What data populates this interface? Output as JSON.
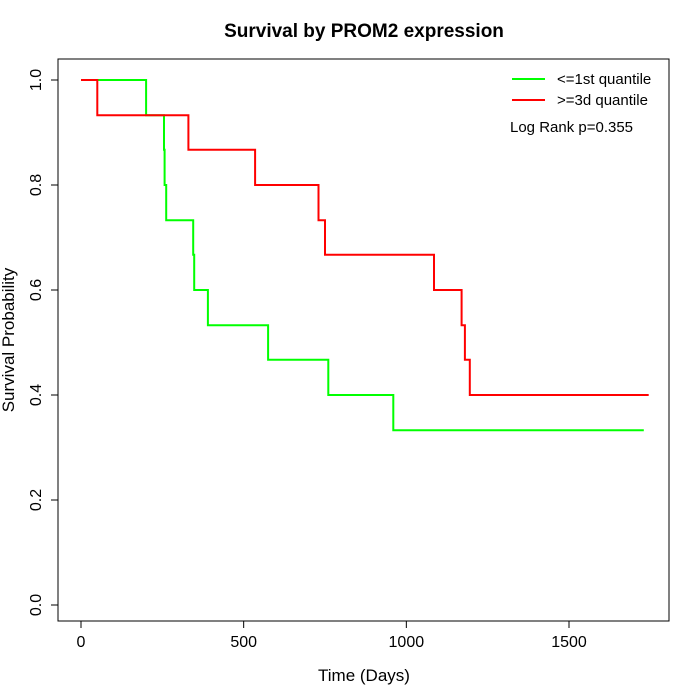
{
  "chart_data": {
    "type": "line",
    "title": "Survival by PROM2 expression",
    "xlabel": "Time (Days)",
    "ylabel": "Survival Probability",
    "xlim": [
      0,
      1750
    ],
    "ylim": [
      0,
      1.0
    ],
    "xticks": [
      0,
      500,
      1000,
      1500
    ],
    "yticks": [
      0.0,
      0.2,
      0.4,
      0.6,
      0.8,
      1.0
    ],
    "xtick_labels": [
      "0",
      "500",
      "1000",
      "1500"
    ],
    "ytick_labels": [
      "0.0",
      "0.2",
      "0.4",
      "0.6",
      "0.8",
      "1.0"
    ],
    "grid": false,
    "legend_position": "top-right",
    "annotation": "Log Rank p=0.355",
    "series": [
      {
        "name": "<=1st quantile",
        "color": "#00ff00",
        "step": true,
        "x": [
          0,
          200,
          255,
          257,
          262,
          345,
          348,
          390,
          575,
          760,
          960,
          1730
        ],
        "y": [
          1.0,
          0.933,
          0.867,
          0.8,
          0.733,
          0.667,
          0.6,
          0.533,
          0.467,
          0.4,
          0.333,
          0.333
        ]
      },
      {
        "name": ">=3d quantile",
        "color": "#ff0000",
        "step": true,
        "x": [
          0,
          50,
          330,
          535,
          730,
          750,
          1085,
          1170,
          1180,
          1195,
          1745
        ],
        "y": [
          1.0,
          0.933,
          0.867,
          0.8,
          0.733,
          0.667,
          0.6,
          0.533,
          0.467,
          0.4,
          0.4
        ]
      }
    ]
  }
}
